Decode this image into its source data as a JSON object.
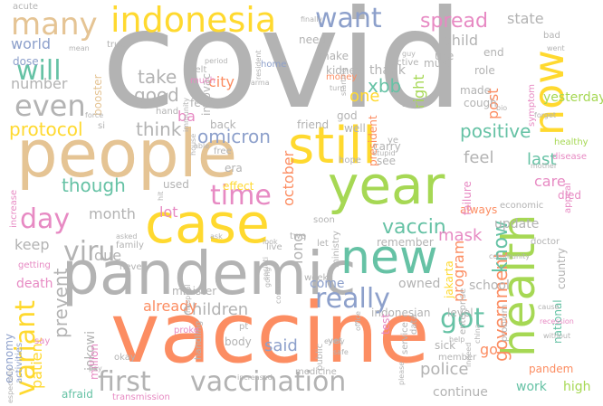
{
  "palette": {
    "gray": "#b3b3b3",
    "orange": "#fc8d62",
    "teal": "#66c2a5",
    "blue": "#8da0cb",
    "pink": "#e78ac3",
    "green": "#a6d854",
    "yellow": "#ffd92f",
    "tan": "#e5c494"
  },
  "words": [
    {
      "text": "covid",
      "color": "gray"
    },
    {
      "text": "vaccine",
      "color": "orange"
    },
    {
      "text": "people",
      "color": "tan"
    },
    {
      "text": "pandemic",
      "color": "gray"
    },
    {
      "text": "case",
      "color": "yellow"
    },
    {
      "text": "year",
      "color": "green"
    },
    {
      "text": "still",
      "color": "yellow"
    },
    {
      "text": "new",
      "color": "teal"
    },
    {
      "text": "health",
      "color": "green"
    },
    {
      "text": "now",
      "color": "yellow"
    },
    {
      "text": "indonesia",
      "color": "yellow"
    },
    {
      "text": "many",
      "color": "tan"
    },
    {
      "text": "even",
      "color": "gray"
    },
    {
      "text": "will",
      "color": "teal"
    },
    {
      "text": "want",
      "color": "blue"
    },
    {
      "text": "time",
      "color": "pink"
    },
    {
      "text": "day",
      "color": "pink"
    },
    {
      "text": "viru",
      "color": "gray"
    },
    {
      "text": "variant",
      "color": "yellow"
    },
    {
      "text": "really",
      "color": "blue"
    },
    {
      "text": "got",
      "color": "teal"
    },
    {
      "text": "vaccination",
      "color": "gray"
    },
    {
      "text": "first",
      "color": "gray"
    },
    {
      "text": "vaccin",
      "color": "teal"
    },
    {
      "text": "government",
      "color": "orange"
    },
    {
      "text": "know",
      "color": "teal"
    },
    {
      "text": "spread",
      "color": "pink"
    },
    {
      "text": "protocol",
      "color": "yellow"
    },
    {
      "text": "positive",
      "color": "teal"
    },
    {
      "text": "take",
      "color": "gray"
    },
    {
      "text": "good",
      "color": "gray"
    },
    {
      "text": "think",
      "color": "gray"
    },
    {
      "text": "omicron",
      "color": "blue"
    },
    {
      "text": "though",
      "color": "teal"
    },
    {
      "text": "children",
      "color": "gray"
    },
    {
      "text": "already",
      "color": "orange"
    },
    {
      "text": "said",
      "color": "blue"
    },
    {
      "text": "police",
      "color": "gray"
    },
    {
      "text": "mask",
      "color": "pink"
    },
    {
      "text": "feel",
      "color": "gray"
    },
    {
      "text": "last",
      "color": "teal"
    },
    {
      "text": "care",
      "color": "pink"
    },
    {
      "text": "xbb",
      "color": "teal"
    },
    {
      "text": "one",
      "color": "yellow"
    },
    {
      "text": "right",
      "color": "green"
    },
    {
      "text": "post",
      "color": "orange"
    },
    {
      "text": "yesterday",
      "color": "green"
    },
    {
      "text": "child",
      "color": "gray"
    },
    {
      "text": "state",
      "color": "gray"
    },
    {
      "text": "world",
      "color": "blue"
    },
    {
      "text": "number",
      "color": "gray"
    },
    {
      "text": "ba",
      "color": "pink"
    },
    {
      "text": "city",
      "color": "orange"
    },
    {
      "text": "lot",
      "color": "pink"
    },
    {
      "text": "month",
      "color": "gray"
    },
    {
      "text": "due",
      "color": "gray"
    },
    {
      "text": "keep",
      "color": "gray"
    },
    {
      "text": "prevent",
      "color": "gray"
    },
    {
      "text": "patient",
      "color": "yellow"
    },
    {
      "text": "death",
      "color": "pink"
    },
    {
      "text": "come",
      "color": "blue"
    },
    {
      "text": "long",
      "color": "gray"
    },
    {
      "text": "owned",
      "color": "gray"
    },
    {
      "text": "program",
      "color": "orange"
    },
    {
      "text": "update",
      "color": "gray"
    },
    {
      "text": "school",
      "color": "gray"
    },
    {
      "text": "country",
      "color": "gray"
    },
    {
      "text": "go",
      "color": "orange"
    },
    {
      "text": "work",
      "color": "teal"
    },
    {
      "text": "continue",
      "color": "gray"
    },
    {
      "text": "high",
      "color": "green"
    },
    {
      "text": "national",
      "color": "teal"
    },
    {
      "text": "indonesian",
      "color": "gray"
    },
    {
      "text": "jakarta",
      "color": "yellow"
    },
    {
      "text": "level",
      "color": "gray"
    },
    {
      "text": "sick",
      "color": "gray"
    },
    {
      "text": "minister",
      "color": "gray"
    },
    {
      "text": "jokowi",
      "color": "gray"
    },
    {
      "text": "million",
      "color": "pink"
    },
    {
      "text": "economy",
      "color": "blue"
    },
    {
      "text": "activities",
      "color": "blue"
    },
    {
      "text": "afraid",
      "color": "teal"
    },
    {
      "text": "body",
      "color": "gray"
    },
    {
      "text": "october",
      "color": "orange"
    },
    {
      "text": "thank",
      "color": "gray"
    },
    {
      "text": "made",
      "color": "gray"
    },
    {
      "text": "cough",
      "color": "gray"
    },
    {
      "text": "end",
      "color": "gray"
    },
    {
      "text": "need",
      "color": "gray"
    },
    {
      "text": "make",
      "color": "gray"
    },
    {
      "text": "kidney",
      "color": "gray"
    },
    {
      "text": "use",
      "color": "gray"
    },
    {
      "text": "booster",
      "color": "tan"
    },
    {
      "text": "used",
      "color": "gray"
    },
    {
      "text": "effect",
      "color": "yellow"
    },
    {
      "text": "era",
      "color": "gray"
    },
    {
      "text": "friend",
      "color": "gray"
    },
    {
      "text": "god",
      "color": "gray"
    },
    {
      "text": "president",
      "color": "orange"
    },
    {
      "text": "always",
      "color": "orange"
    },
    {
      "text": "failure",
      "color": "pink"
    },
    {
      "text": "economic",
      "color": "gray"
    },
    {
      "text": "died",
      "color": "pink"
    },
    {
      "text": "increase",
      "color": "pink"
    },
    {
      "text": "indovac",
      "color": "gray"
    },
    {
      "text": "fever",
      "color": "gray"
    },
    {
      "text": "back",
      "color": "gray"
    },
    {
      "text": "well",
      "color": "gray"
    },
    {
      "text": "carry",
      "color": "gray"
    },
    {
      "text": "see",
      "color": "gray"
    },
    {
      "text": "role",
      "color": "gray"
    },
    {
      "text": "must",
      "color": "gray"
    },
    {
      "text": "money",
      "color": "orange"
    },
    {
      "text": "felt",
      "color": "gray"
    },
    {
      "text": "much",
      "color": "pink"
    },
    {
      "text": "hand",
      "color": "gray"
    },
    {
      "text": "home",
      "color": "blue"
    },
    {
      "text": "true",
      "color": "gray"
    },
    {
      "text": "dose",
      "color": "blue"
    },
    {
      "text": "acute",
      "color": "gray"
    },
    {
      "text": "mean",
      "color": "gray"
    },
    {
      "text": "bad",
      "color": "gray"
    },
    {
      "text": "went",
      "color": "gray"
    },
    {
      "text": "symptom",
      "color": "pink"
    },
    {
      "text": "forget",
      "color": "gray"
    },
    {
      "text": "bio",
      "color": "gray"
    },
    {
      "text": "healthy",
      "color": "green"
    },
    {
      "text": "disease",
      "color": "pink"
    },
    {
      "text": "mother",
      "color": "gray"
    },
    {
      "text": "appeal",
      "color": "pink"
    },
    {
      "text": "two",
      "color": "gray"
    },
    {
      "text": "ministry",
      "color": "gray"
    },
    {
      "text": "remember",
      "color": "gray"
    },
    {
      "text": "doctor",
      "color": "gray"
    },
    {
      "text": "community",
      "color": "gray"
    },
    {
      "text": "enterprise",
      "color": "gray"
    },
    {
      "text": "problem",
      "color": "gray"
    },
    {
      "text": "recession",
      "color": "pink"
    },
    {
      "text": "cause",
      "color": "gray"
    },
    {
      "text": "without",
      "color": "gray"
    },
    {
      "text": "pandem",
      "color": "orange"
    },
    {
      "text": "member",
      "color": "gray"
    },
    {
      "text": "service",
      "color": "gray"
    },
    {
      "text": "test",
      "color": "pink"
    },
    {
      "text": "public",
      "color": "gray"
    },
    {
      "text": "yet",
      "color": "gray"
    },
    {
      "text": "safe",
      "color": "gray"
    },
    {
      "text": "office",
      "color": "gray"
    },
    {
      "text": "let",
      "color": "gray"
    },
    {
      "text": "week",
      "color": "gray"
    },
    {
      "text": "data",
      "color": "gray"
    },
    {
      "text": "china",
      "color": "gray"
    },
    {
      "text": "help",
      "color": "gray"
    },
    {
      "text": "indeed",
      "color": "gray"
    },
    {
      "text": "please",
      "color": "gray"
    },
    {
      "text": "medicine",
      "color": "gray"
    },
    {
      "text": "transmission",
      "color": "pink"
    },
    {
      "text": "okay",
      "color": "gray"
    },
    {
      "text": "increased",
      "color": "gray"
    },
    {
      "text": "handling",
      "color": "gray"
    },
    {
      "text": "never",
      "color": "gray"
    },
    {
      "text": "hospital",
      "color": "gray"
    },
    {
      "text": "family",
      "color": "gray"
    },
    {
      "text": "asked",
      "color": "gray"
    },
    {
      "text": "getting",
      "color": "pink"
    },
    {
      "text": "especially",
      "color": "gray"
    },
    {
      "text": "say",
      "color": "pink"
    },
    {
      "text": "proke",
      "color": "pink"
    },
    {
      "text": "pt",
      "color": "gray"
    },
    {
      "text": "live",
      "color": "gray"
    },
    {
      "text": "soon",
      "color": "gray"
    },
    {
      "text": "every",
      "color": "gray"
    },
    {
      "text": "societi",
      "color": "gray"
    },
    {
      "text": "hope",
      "color": "gray"
    },
    {
      "text": "stupid",
      "color": "gray"
    },
    {
      "text": "ye",
      "color": "gray"
    },
    {
      "text": "able",
      "color": "gray"
    },
    {
      "text": "free",
      "color": "gray"
    },
    {
      "text": "force",
      "color": "gray"
    },
    {
      "text": "immunity",
      "color": "gray"
    },
    {
      "text": "house",
      "color": "gray"
    },
    {
      "text": "period",
      "color": "gray"
    },
    {
      "text": "resident",
      "color": "gray"
    },
    {
      "text": "farma",
      "color": "gray"
    },
    {
      "text": "turn",
      "color": "gray"
    },
    {
      "text": "finally",
      "color": "gray"
    },
    {
      "text": "active",
      "color": "gray"
    },
    {
      "text": "guy",
      "color": "gray"
    },
    {
      "text": "si",
      "color": "gray"
    },
    {
      "text": "away",
      "color": "gray"
    },
    {
      "text": "starting",
      "color": "gray"
    },
    {
      "text": "look",
      "color": "gray"
    },
    {
      "text": "ask",
      "color": "gray"
    },
    {
      "text": "hit",
      "color": "gray"
    },
    {
      "text": "pay",
      "color": "gray"
    },
    {
      "text": "going",
      "color": "gray"
    },
    {
      "text": "corona",
      "color": "gray"
    }
  ]
}
